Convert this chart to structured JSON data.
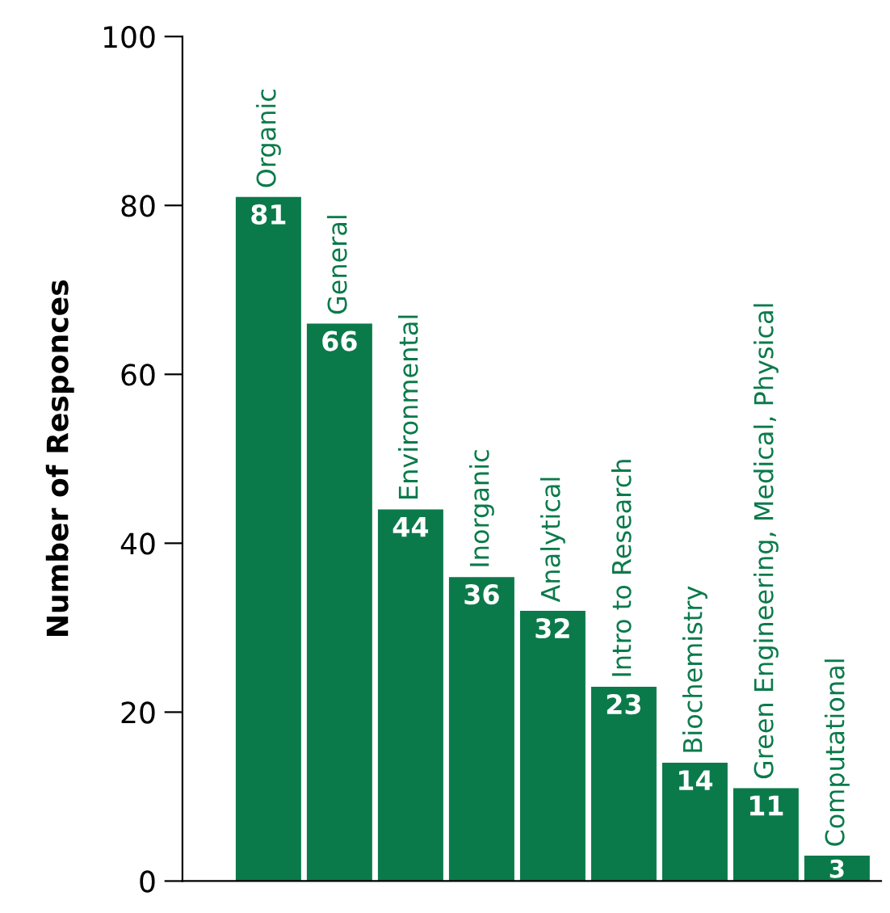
{
  "chart_data": {
    "type": "bar",
    "ylabel": "Number of Responces",
    "categories": [
      "Organic",
      "General",
      "Environmental",
      "Inorganic",
      "Analytical",
      "Intro to Research",
      "Biochemistry",
      "Green Engineering, Medical, Physical",
      "Computational"
    ],
    "values": [
      81,
      66,
      44,
      36,
      32,
      23,
      14,
      11,
      3
    ],
    "color": "#0b7a4b",
    "ylim": [
      0,
      100
    ],
    "yticks": [
      0,
      20,
      40,
      60,
      80,
      100
    ],
    "data_labels": true,
    "tick_labels": "y",
    "grid": false
  }
}
